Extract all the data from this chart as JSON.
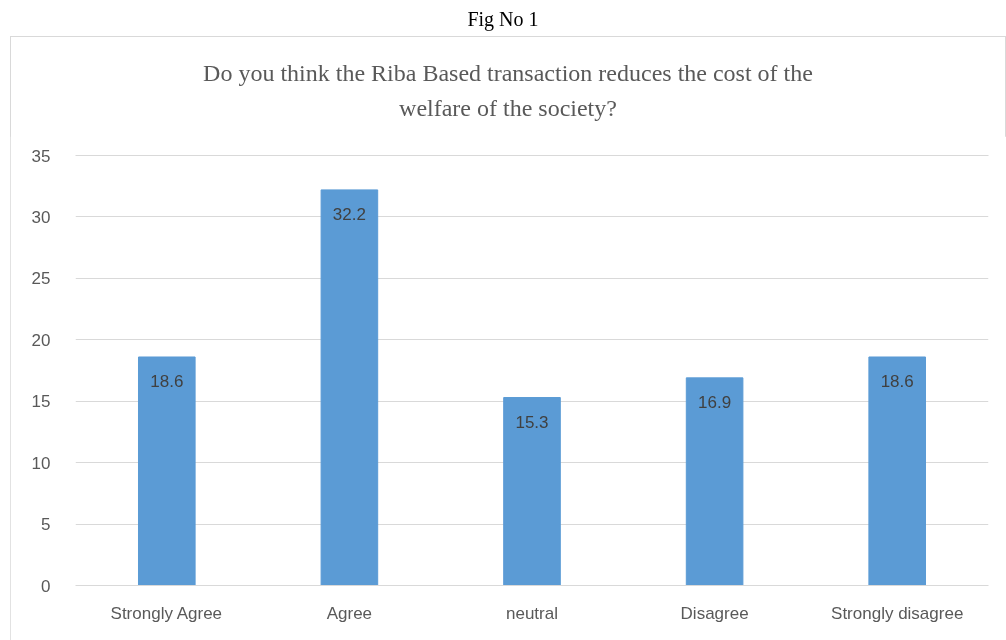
{
  "chart_data": {
    "type": "bar",
    "title": "Do you think the Riba Based transaction reduces the cost of the welfare of the society?",
    "annotations": [
      "Fig No 1"
    ],
    "categories": [
      "Strongly Agree",
      "Agree",
      "neutral",
      "Disagree",
      "Strongly disagree"
    ],
    "values": [
      18.6,
      32.2,
      15.3,
      16.9,
      18.6
    ],
    "color": "#5b9bd5",
    "ylim": [
      0,
      35
    ],
    "yticks": [
      0,
      5,
      10,
      15,
      20,
      25,
      30,
      35
    ],
    "grid": "y",
    "data_labels": true
  }
}
